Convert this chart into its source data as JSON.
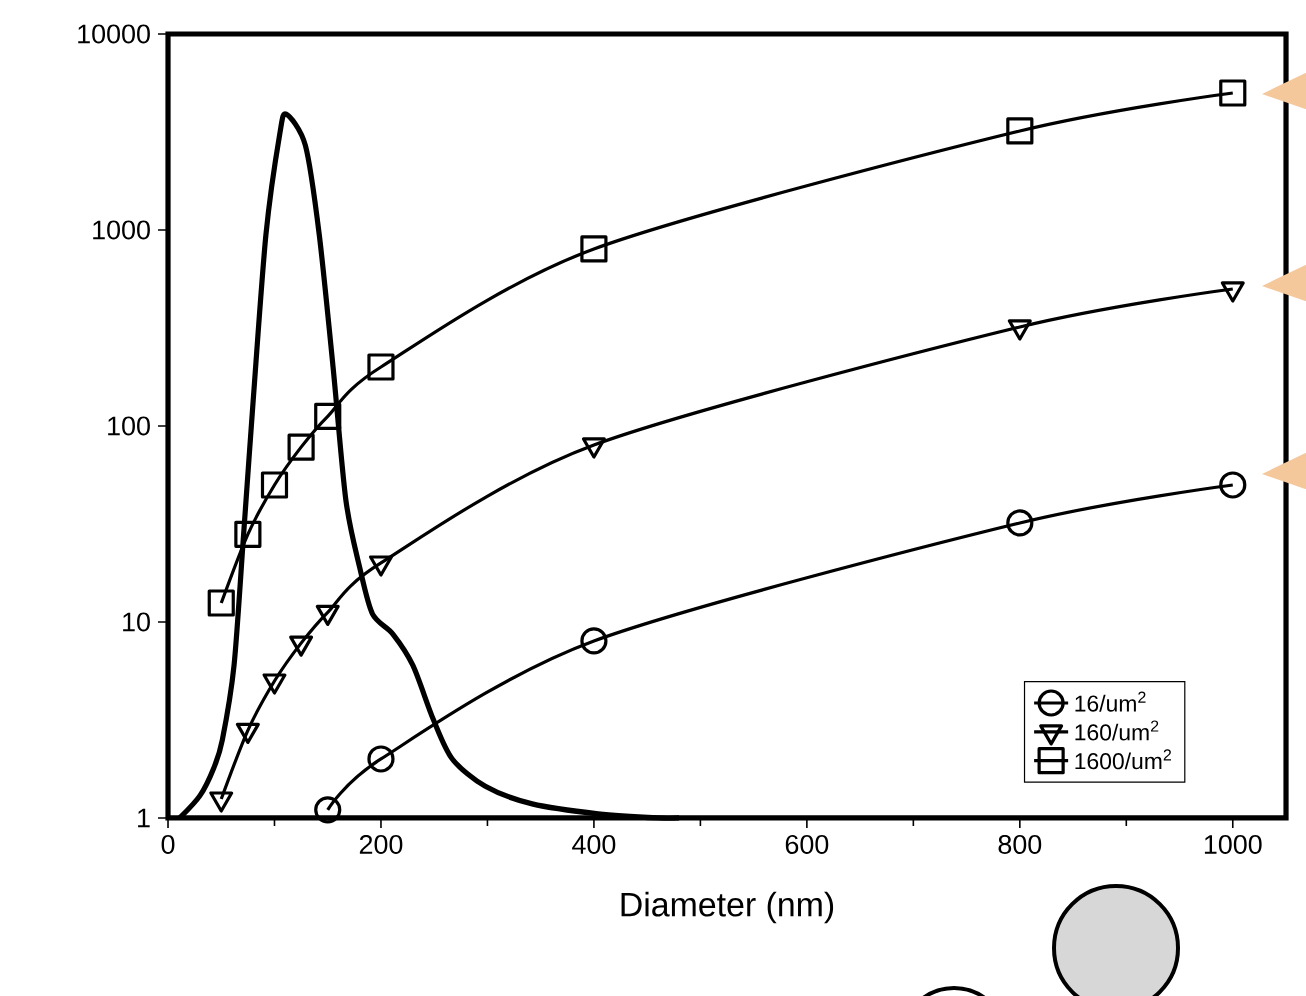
{
  "chart_data": {
    "type": "line",
    "xlabel": "Diameter (nm)",
    "xlim": [
      0,
      1050
    ],
    "xticks": [
      0,
      200,
      400,
      600,
      800,
      1000
    ],
    "ylim": [
      1,
      10000
    ],
    "yticks": [
      1,
      10,
      100,
      1000,
      10000
    ],
    "log": "y",
    "grid": false,
    "legend": "bottom right",
    "line_style": "solid",
    "series": [
      {
        "color": "#000000",
        "marker": "none",
        "x": [
          11,
          30,
          43,
          51,
          62,
          71,
          80,
          92,
          105,
          111,
          129,
          142,
          155,
          167,
          180,
          192,
          211,
          230,
          249,
          267,
          298,
          342,
          404,
          460,
          480
        ],
        "values": [
          1,
          1.3,
          1.8,
          2.5,
          6,
          28,
          135,
          950,
          3100,
          3900,
          2700,
          950,
          200,
          42,
          19,
          11,
          8.7,
          6,
          3.2,
          2,
          1.45,
          1.18,
          1.05,
          1,
          1
        ]
      },
      {
        "name": "16/um$^{2}$",
        "color": "#000000",
        "marker": "circle",
        "x": [
          150,
          200,
          400,
          800,
          1000
        ],
        "values": [
          1.1,
          2,
          8,
          32,
          50
        ]
      },
      {
        "name": "160/um$^{2}$",
        "color": "#000000",
        "marker": "triangle",
        "x": [
          50,
          75,
          100,
          125,
          150,
          200,
          400,
          800,
          1000
        ],
        "values": [
          1.25,
          2.8,
          5,
          7.8,
          11.2,
          20,
          80,
          320,
          500
        ]
      },
      {
        "name": "1600/um$^{2}$",
        "color": "#000000",
        "marker": "square",
        "x": [
          50,
          75,
          100,
          125,
          150,
          200,
          400,
          800,
          1000
        ],
        "values": [
          12.5,
          28,
          50,
          78,
          112,
          200,
          800,
          3200,
          5000
        ]
      }
    ]
  }
}
